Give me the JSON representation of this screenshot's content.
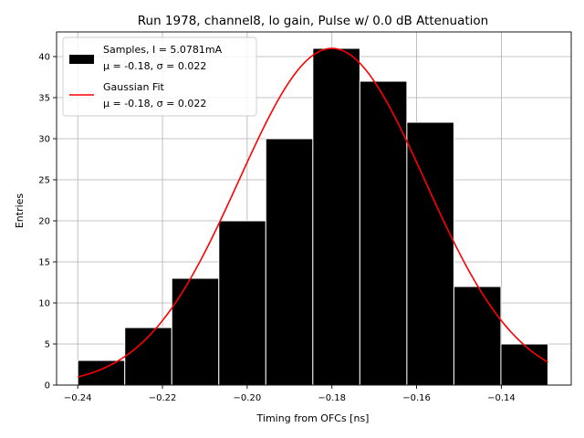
{
  "chart_data": {
    "type": "bar",
    "title": "Run 1978, channel8, lo gain, Pulse w/ 0.0 dB Attenuation",
    "xlabel": "Timing from OFCs [ns]",
    "ylabel": "Entries",
    "xlim": [
      -0.245,
      -0.1235
    ],
    "ylim": [
      0,
      43
    ],
    "grid": true,
    "x_ticks": [
      -0.24,
      -0.22,
      -0.2,
      -0.18,
      -0.16,
      -0.14
    ],
    "x_tick_labels": [
      "−0.24",
      "−0.22",
      "−0.20",
      "−0.18",
      "−0.16",
      "−0.14"
    ],
    "y_ticks": [
      0,
      5,
      10,
      15,
      20,
      25,
      30,
      35,
      40
    ],
    "y_tick_labels": [
      "0",
      "5",
      "10",
      "15",
      "20",
      "25",
      "30",
      "35",
      "40"
    ],
    "bin_edges": [
      -0.24,
      -0.2289,
      -0.2178,
      -0.2067,
      -0.1956,
      -0.1845,
      -0.1734,
      -0.1623,
      -0.1512,
      -0.1401,
      -0.129
    ],
    "values": [
      3,
      7,
      13,
      20,
      30,
      41,
      37,
      32,
      12,
      5
    ],
    "fit": {
      "mu": -0.18,
      "sigma": 0.022,
      "amplitude": 41,
      "x_range": [
        -0.24,
        -0.129
      ],
      "color": "#ff0000"
    },
    "bar_color": "#000000",
    "bar_edge_color": "#ffffff",
    "legend": {
      "position": "top-left",
      "entries": [
        {
          "label_line1": "Samples, I = 5.0781mA",
          "label_line2": "μ = -0.18, σ = 0.022"
        },
        {
          "label_line1": "Gaussian Fit",
          "label_line2": "μ = -0.18, σ = 0.022"
        }
      ]
    }
  }
}
